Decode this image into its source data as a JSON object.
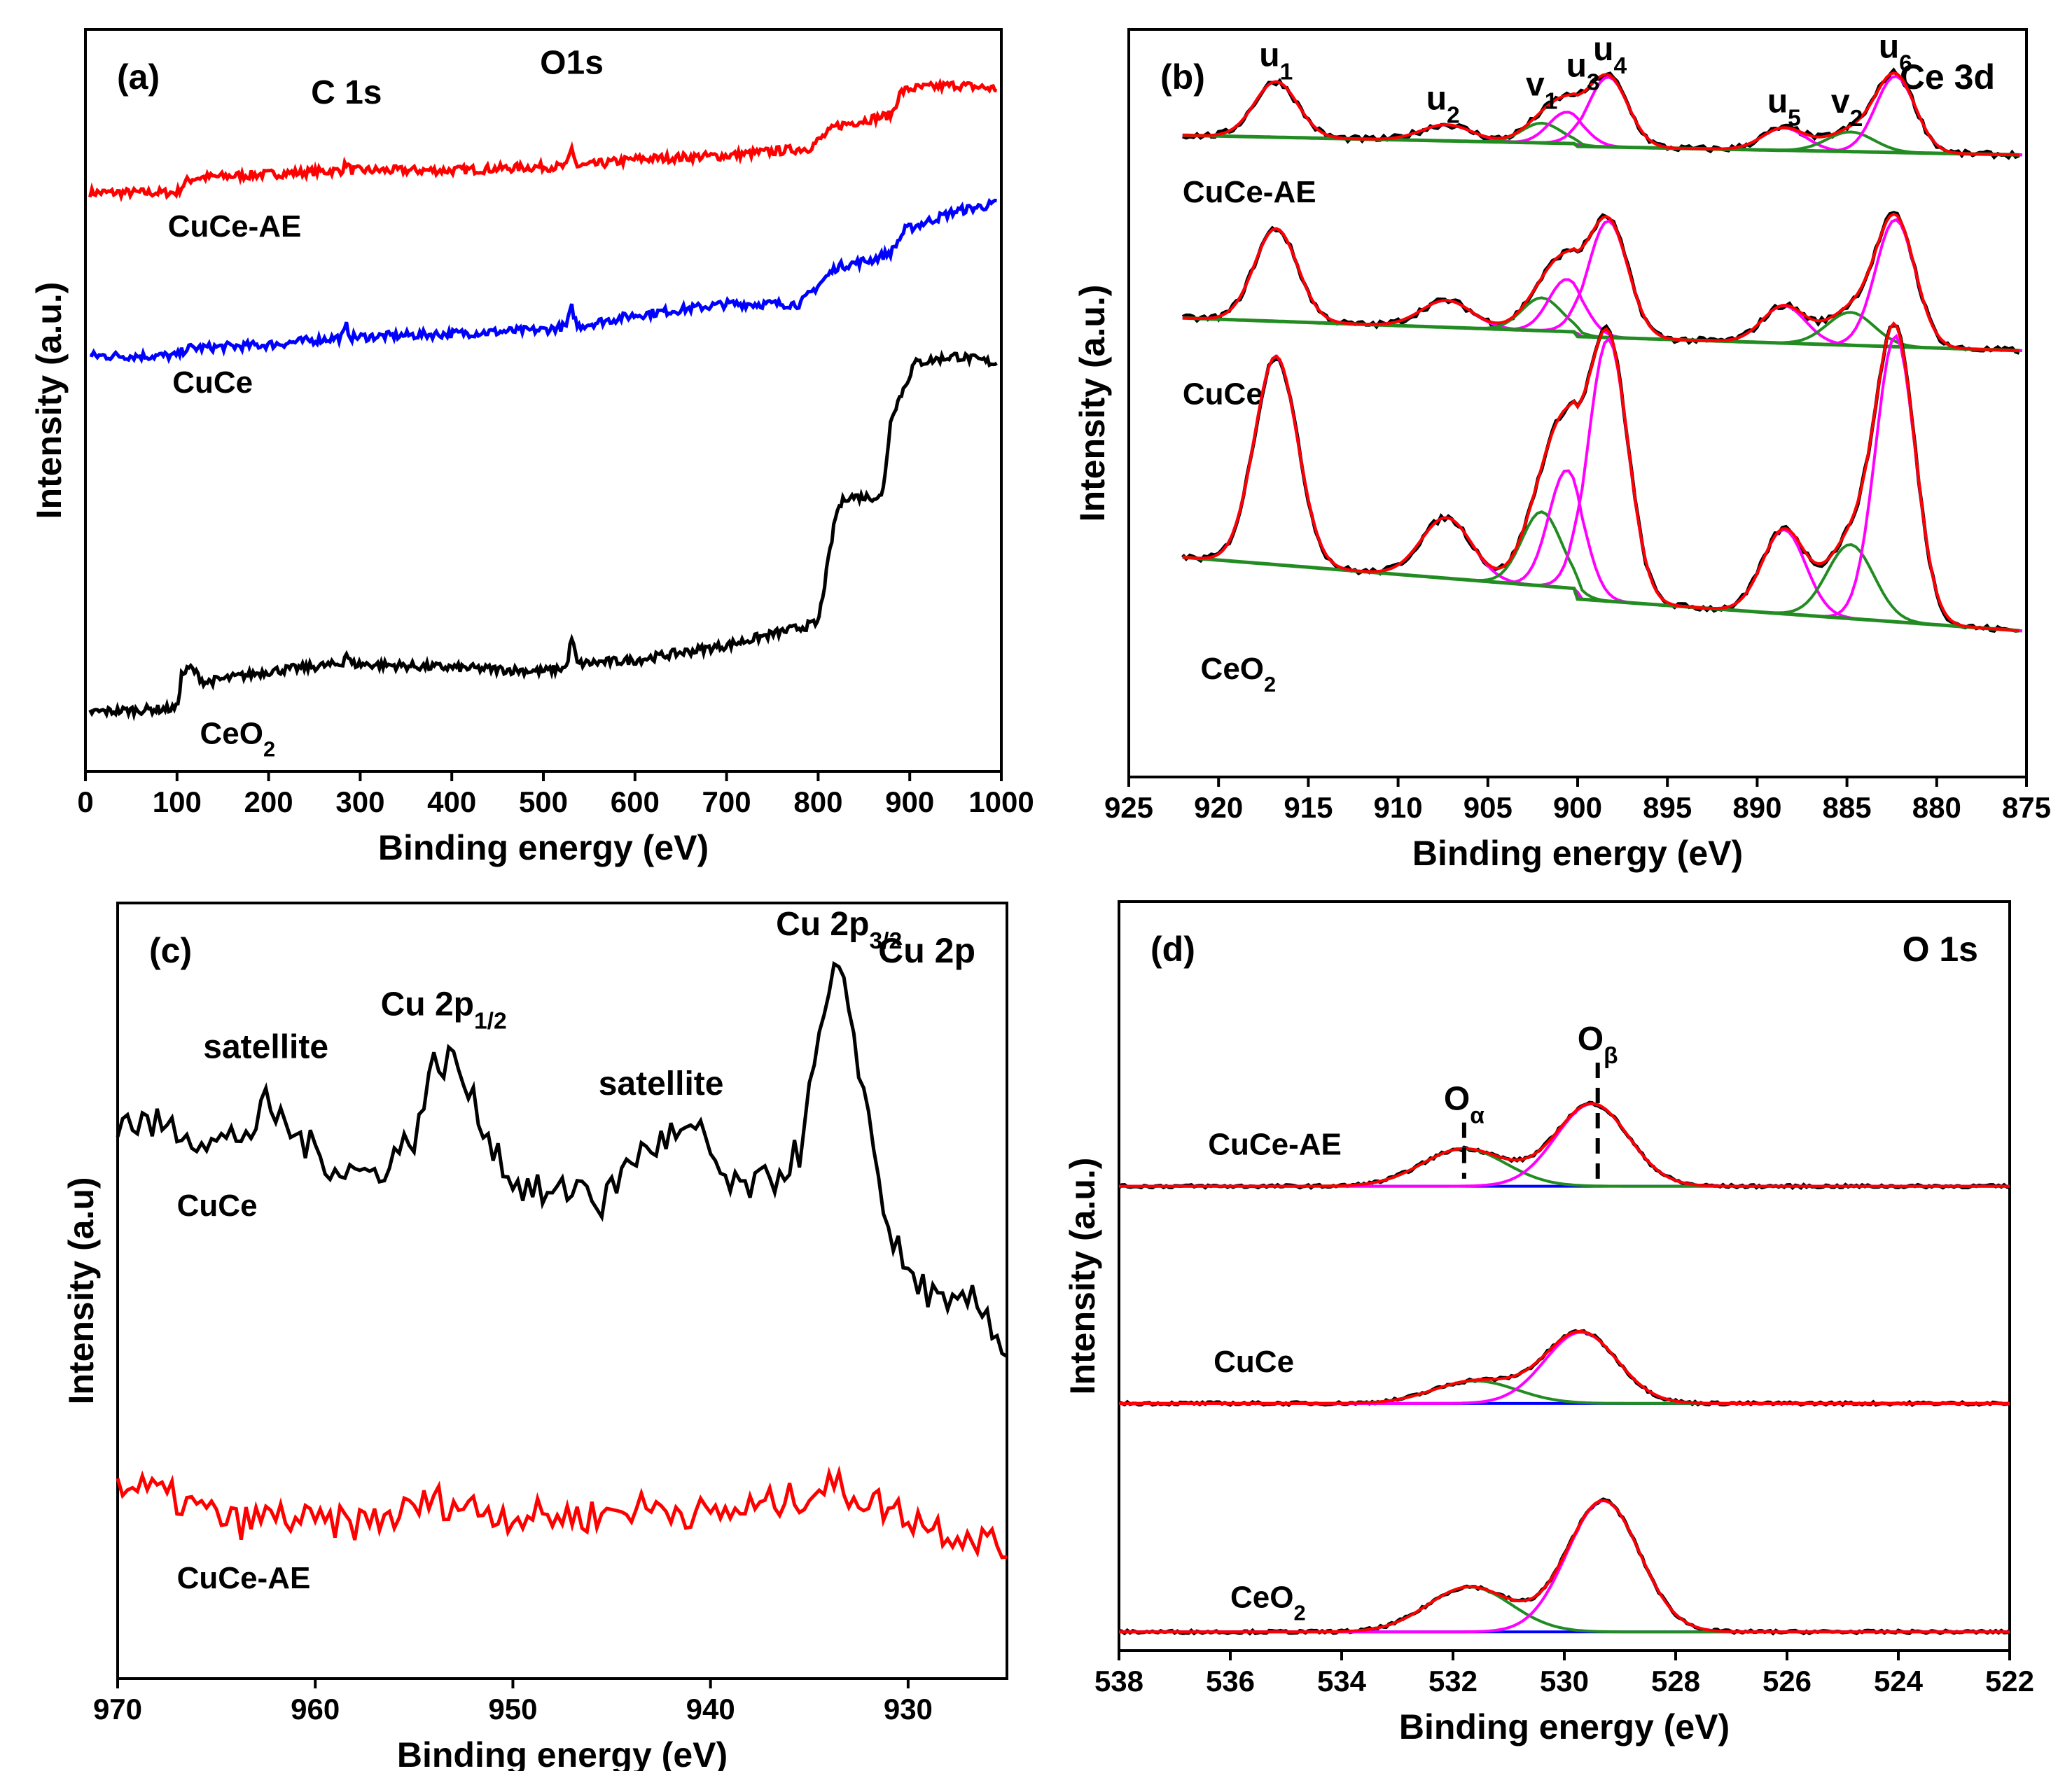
{
  "chart_data": [
    {
      "panel": "(a)",
      "type": "line",
      "title": "",
      "corner_label": "",
      "xlabel": "Binding energy (eV)",
      "ylabel": "Intensity (a.u.)",
      "xlim": [
        0,
        1000
      ],
      "x_reversed": false,
      "xticks": [
        0,
        100,
        200,
        300,
        400,
        500,
        600,
        700,
        800,
        900,
        1000
      ],
      "annotations": [
        {
          "text": "C 1s",
          "x": 285,
          "series": "CuCe-AE",
          "offset": 0.08
        },
        {
          "text": "O1s",
          "x": 531,
          "series": "CuCe-AE",
          "offset": 0.1
        }
      ],
      "series": [
        {
          "name": "CuCe-AE",
          "color": "#ff0000",
          "label_x": 90,
          "label_dy": 0.05,
          "points": [
            [
              5,
              0.78
            ],
            [
              100,
              0.78
            ],
            [
              110,
              0.795
            ],
            [
              120,
              0.8
            ],
            [
              200,
              0.805
            ],
            [
              280,
              0.81
            ],
            [
              285,
              0.82
            ],
            [
              290,
              0.81
            ],
            [
              400,
              0.81
            ],
            [
              500,
              0.815
            ],
            [
              525,
              0.815
            ],
            [
              531,
              0.84
            ],
            [
              537,
              0.815
            ],
            [
              600,
              0.825
            ],
            [
              700,
              0.83
            ],
            [
              790,
              0.84
            ],
            [
              820,
              0.87
            ],
            [
              880,
              0.885
            ],
            [
              890,
              0.915
            ],
            [
              900,
              0.92
            ],
            [
              950,
              0.925
            ],
            [
              995,
              0.92
            ]
          ]
        },
        {
          "name": "CuCe",
          "color": "#0000ff",
          "label_x": 95,
          "label_dy": 0.04,
          "points": [
            [
              5,
              0.56
            ],
            [
              100,
              0.56
            ],
            [
              110,
              0.57
            ],
            [
              200,
              0.575
            ],
            [
              280,
              0.585
            ],
            [
              285,
              0.6
            ],
            [
              290,
              0.585
            ],
            [
              400,
              0.59
            ],
            [
              500,
              0.595
            ],
            [
              525,
              0.6
            ],
            [
              531,
              0.625
            ],
            [
              537,
              0.6
            ],
            [
              600,
              0.615
            ],
            [
              700,
              0.63
            ],
            [
              780,
              0.63
            ],
            [
              820,
              0.68
            ],
            [
              860,
              0.69
            ],
            [
              880,
              0.7
            ],
            [
              895,
              0.73
            ],
            [
              950,
              0.755
            ],
            [
              995,
              0.765
            ]
          ]
        },
        {
          "name": "CeO2",
          "color": "#000000",
          "label_x": 125,
          "label_dy": 0.08,
          "points": [
            [
              5,
              0.08
            ],
            [
              100,
              0.085
            ],
            [
              105,
              0.13
            ],
            [
              115,
              0.14
            ],
            [
              130,
              0.12
            ],
            [
              200,
              0.135
            ],
            [
              280,
              0.145
            ],
            [
              285,
              0.16
            ],
            [
              290,
              0.145
            ],
            [
              400,
              0.14
            ],
            [
              500,
              0.135
            ],
            [
              525,
              0.14
            ],
            [
              531,
              0.18
            ],
            [
              537,
              0.145
            ],
            [
              600,
              0.15
            ],
            [
              700,
              0.17
            ],
            [
              750,
              0.185
            ],
            [
              800,
              0.2
            ],
            [
              820,
              0.35
            ],
            [
              830,
              0.37
            ],
            [
              870,
              0.37
            ],
            [
              880,
              0.48
            ],
            [
              895,
              0.52
            ],
            [
              905,
              0.55
            ],
            [
              950,
              0.56
            ],
            [
              995,
              0.55
            ]
          ]
        }
      ]
    },
    {
      "panel": "(b)",
      "type": "line",
      "title": "",
      "corner_label": "Ce 3d",
      "xlabel": "Binding energy (eV)",
      "ylabel": "Intensity (a.u.)",
      "xlim": [
        925,
        875
      ],
      "x_reversed": true,
      "xticks": [
        925,
        920,
        915,
        910,
        905,
        900,
        895,
        890,
        885,
        880,
        875
      ],
      "peak_labels": [
        {
          "text": "u1",
          "x": 916.8
        },
        {
          "text": "u2",
          "x": 907.5
        },
        {
          "text": "v1",
          "x": 902
        },
        {
          "text": "u3",
          "x": 899.7
        },
        {
          "text": "u4",
          "x": 898.2
        },
        {
          "text": "u5",
          "x": 888.5
        },
        {
          "text": "v2",
          "x": 885
        },
        {
          "text": "u6",
          "x": 882.3
        }
      ],
      "series": [
        {
          "name": "CuCe-AE",
          "baseline": 0.82,
          "scale": 0.12,
          "label_x": 922
        },
        {
          "name": "CuCe",
          "baseline": 0.55,
          "scale": 0.2,
          "label_x": 922
        },
        {
          "name": "CeO2",
          "baseline": 0.15,
          "scale": 0.45,
          "label_x": 921
        }
      ],
      "components": [
        {
          "name": "u1",
          "center": 916.8,
          "width": 1.2,
          "height": 0.62,
          "color": "#ff00ff"
        },
        {
          "name": "u2",
          "center": 907.3,
          "width": 1.4,
          "height": 0.18,
          "color": "#ff00ff"
        },
        {
          "name": "v1",
          "center": 902.0,
          "width": 1.1,
          "height": 0.22,
          "color": "#228b22"
        },
        {
          "name": "u3",
          "center": 900.6,
          "width": 1.0,
          "height": 0.35,
          "color": "#ff00ff"
        },
        {
          "name": "u4",
          "center": 898.3,
          "width": 1.1,
          "height": 0.78,
          "color": "#ff00ff"
        },
        {
          "name": "u5",
          "center": 888.5,
          "width": 1.2,
          "height": 0.25,
          "color": "#ff00ff"
        },
        {
          "name": "v2",
          "center": 884.8,
          "width": 1.3,
          "height": 0.22,
          "color": "#228b22"
        },
        {
          "name": "u6",
          "center": 882.3,
          "width": 1.1,
          "height": 0.85,
          "color": "#ff00ff"
        }
      ],
      "colors": {
        "raw": "#000000",
        "envelope": "#ff0000",
        "background": "#228b22"
      }
    },
    {
      "panel": "(c)",
      "type": "line",
      "title": "",
      "corner_label": "Cu 2p",
      "xlabel": "Binding energy (eV)",
      "ylabel": "Intensity (a.u)",
      "xlim": [
        970,
        925
      ],
      "x_reversed": true,
      "xticks": [
        970,
        960,
        950,
        940,
        930
      ],
      "annotations": [
        {
          "text": "satellite",
          "x": 962.5
        },
        {
          "text": "Cu 2p",
          "sub": "1/2",
          "x": 953.5
        },
        {
          "text": "satellite",
          "x": 942.5
        },
        {
          "text": "Cu 2p",
          "sub": "3/2",
          "x": 933.5
        }
      ],
      "series": [
        {
          "name": "CuCe",
          "color": "#000000",
          "label_x": 967,
          "points": [
            [
              970,
              0.72
            ],
            [
              967,
              0.71
            ],
            [
              965,
              0.69
            ],
            [
              963,
              0.71
            ],
            [
              962.5,
              0.74
            ],
            [
              961,
              0.7
            ],
            [
              959,
              0.66
            ],
            [
              957,
              0.65
            ],
            [
              955,
              0.7
            ],
            [
              954,
              0.79
            ],
            [
              953,
              0.8
            ],
            [
              952,
              0.74
            ],
            [
              950,
              0.64
            ],
            [
              948,
              0.62
            ],
            [
              946.5,
              0.64
            ],
            [
              945.5,
              0.61
            ],
            [
              944,
              0.67
            ],
            [
              942,
              0.7
            ],
            [
              940.5,
              0.7
            ],
            [
              939,
              0.63
            ],
            [
              937,
              0.64
            ],
            [
              935.5,
              0.68
            ],
            [
              934.5,
              0.82
            ],
            [
              933.7,
              0.91
            ],
            [
              933,
              0.87
            ],
            [
              932,
              0.72
            ],
            [
              931,
              0.58
            ],
            [
              930,
              0.52
            ],
            [
              929,
              0.5
            ],
            [
              928,
              0.47
            ],
            [
              927,
              0.49
            ],
            [
              926,
              0.47
            ],
            [
              925,
              0.42
            ]
          ]
        },
        {
          "name": "CuCe-AE",
          "color": "#ff0000",
          "label_x": 967,
          "points": [
            [
              970,
              0.25
            ],
            [
              968,
              0.24
            ],
            [
              966,
              0.22
            ],
            [
              964,
              0.2
            ],
            [
              962,
              0.21
            ],
            [
              960,
              0.2
            ],
            [
              958,
              0.2
            ],
            [
              956,
              0.21
            ],
            [
              954,
              0.23
            ],
            [
              952,
              0.22
            ],
            [
              950,
              0.21
            ],
            [
              948,
              0.21
            ],
            [
              946,
              0.21
            ],
            [
              944,
              0.22
            ],
            [
              942,
              0.22
            ],
            [
              940,
              0.21
            ],
            [
              938,
              0.22
            ],
            [
              936,
              0.23
            ],
            [
              934,
              0.25
            ],
            [
              932,
              0.23
            ],
            [
              930,
              0.21
            ],
            [
              928,
              0.19
            ],
            [
              926,
              0.18
            ],
            [
              925,
              0.16
            ]
          ]
        }
      ]
    },
    {
      "panel": "(d)",
      "type": "line",
      "title": "",
      "corner_label": "O 1s",
      "xlabel": "Binding energy (eV)",
      "ylabel": "Intensity (a.u.)",
      "xlim": [
        538,
        522
      ],
      "x_reversed": true,
      "xticks": [
        538,
        536,
        534,
        532,
        530,
        528,
        526,
        524,
        522
      ],
      "markers": [
        {
          "text": "O",
          "sub": "α",
          "x": 531.8
        },
        {
          "text": "O",
          "sub": "β",
          "x": 529.4
        }
      ],
      "series": [
        {
          "name": "CuCe-AE",
          "baseline": 0.62,
          "alpha_h": 0.05,
          "beta_h": 0.11,
          "alpha_c": 531.8,
          "beta_c": 529.5,
          "label_x": 536.4
        },
        {
          "name": "CuCe",
          "baseline": 0.33,
          "alpha_h": 0.03,
          "beta_h": 0.095,
          "alpha_c": 531.6,
          "beta_c": 529.7,
          "label_x": 536.3
        },
        {
          "name": "CeO2",
          "baseline": 0.025,
          "alpha_h": 0.06,
          "beta_h": 0.175,
          "alpha_c": 531.7,
          "beta_c": 529.3,
          "label_x": 536.0
        }
      ],
      "colors": {
        "raw": "#000000",
        "envelope": "#ff0000",
        "alpha": "#228b22",
        "beta": "#ff00ff",
        "baseline": "#0000ff"
      }
    }
  ]
}
